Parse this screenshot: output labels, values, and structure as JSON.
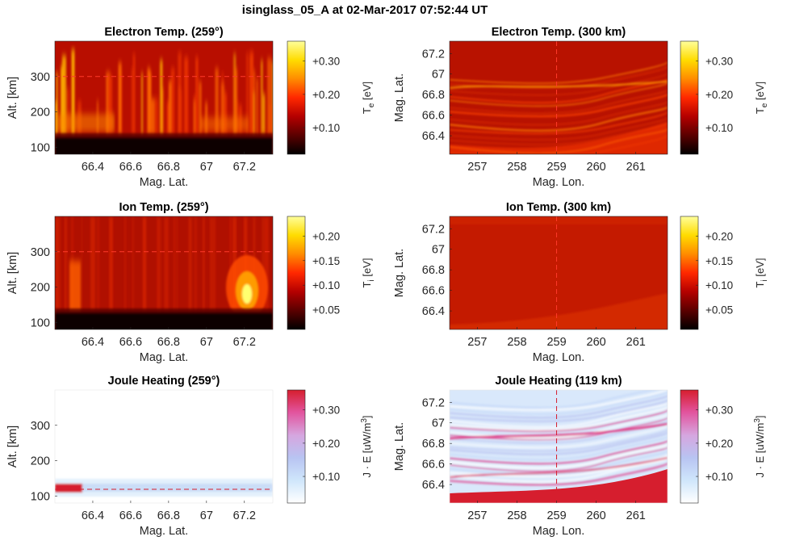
{
  "figure_title": "isinglass_05_A at 02-Mar-2017 07:52:44 UT",
  "colormaps": {
    "hot": [
      "#000000",
      "#5a0000",
      "#b40000",
      "#ff2800",
      "#ff8c00",
      "#ffdc00",
      "#ffff9b"
    ],
    "joule": [
      "#ffffff",
      "#cfe6fb",
      "#b8c4f2",
      "#d6a6df",
      "#e2559f",
      "#d61e2e"
    ]
  },
  "chart_data": [
    {
      "id": "e-alt",
      "type": "heatmap",
      "cmap": "hot",
      "title": "Electron Temp. (259°)",
      "xlabel": "Mag. Lat.",
      "ylabel": "Alt. [km]",
      "xlim": [
        66.2,
        67.35
      ],
      "ylim": [
        80,
        400
      ],
      "xticks": [
        66.4,
        66.6,
        66.8,
        67,
        67.2
      ],
      "xticklabels": [
        "66.4",
        "66.6",
        "66.8",
        "67",
        "67.2"
      ],
      "yticks": [
        100,
        200,
        300
      ],
      "yticklabels": [
        "100",
        "200",
        "300"
      ],
      "clim": [
        0.02,
        0.36
      ],
      "cbticks": [
        0.1,
        0.2,
        0.3
      ],
      "cbticklabels": [
        "+0.10",
        "+0.20",
        "+0.30"
      ],
      "cblabel_main": "T",
      "cblabel_sub": "e",
      "cblabel_unit": " [eV]",
      "marker_line": {
        "axis": "y",
        "value": 300
      }
    },
    {
      "id": "e-map",
      "type": "heatmap",
      "cmap": "hot",
      "title": "Electron Temp. (300 km)",
      "xlabel": "Mag. Lon.",
      "ylabel": "Mag. Lat.",
      "xlim": [
        256.3,
        261.8
      ],
      "ylim": [
        66.22,
        67.32
      ],
      "xticks": [
        257,
        258,
        259,
        260,
        261
      ],
      "xticklabels": [
        "257",
        "258",
        "259",
        "260",
        "261"
      ],
      "yticks": [
        66.4,
        66.6,
        66.8,
        67,
        67.2
      ],
      "yticklabels": [
        "66.4",
        "66.6",
        "66.8",
        "67",
        "67.2"
      ],
      "clim": [
        0.02,
        0.36
      ],
      "cbticks": [
        0.1,
        0.2,
        0.3
      ],
      "cbticklabels": [
        "+0.10",
        "+0.20",
        "+0.30"
      ],
      "cblabel_main": "T",
      "cblabel_sub": "e",
      "cblabel_unit": " [eV]",
      "marker_line": {
        "axis": "x",
        "value": 259
      }
    },
    {
      "id": "i-alt",
      "type": "heatmap",
      "cmap": "hot",
      "title": "Ion Temp. (259°)",
      "xlabel": "Mag. Lat.",
      "ylabel": "Alt. [km]",
      "xlim": [
        66.2,
        67.35
      ],
      "ylim": [
        80,
        400
      ],
      "xticks": [
        66.4,
        66.6,
        66.8,
        67,
        67.2
      ],
      "xticklabels": [
        "66.4",
        "66.6",
        "66.8",
        "67",
        "67.2"
      ],
      "yticks": [
        100,
        200,
        300
      ],
      "yticklabels": [
        "100",
        "200",
        "300"
      ],
      "clim": [
        0.01,
        0.24
      ],
      "cbticks": [
        0.05,
        0.1,
        0.15,
        0.2
      ],
      "cbticklabels": [
        "+0.05",
        "+0.10",
        "+0.15",
        "+0.20"
      ],
      "cblabel_main": "T",
      "cblabel_sub": "i",
      "cblabel_unit": " [eV]",
      "marker_line": {
        "axis": "y",
        "value": 300
      }
    },
    {
      "id": "i-map",
      "type": "heatmap",
      "cmap": "hot",
      "title": "Ion Temp. (300 km)",
      "xlabel": "Mag. Lon.",
      "ylabel": "Mag. Lat.",
      "xlim": [
        256.3,
        261.8
      ],
      "ylim": [
        66.22,
        67.32
      ],
      "xticks": [
        257,
        258,
        259,
        260,
        261
      ],
      "xticklabels": [
        "257",
        "258",
        "259",
        "260",
        "261"
      ],
      "yticks": [
        66.4,
        66.6,
        66.8,
        67,
        67.2
      ],
      "yticklabels": [
        "66.4",
        "66.6",
        "66.8",
        "67",
        "67.2"
      ],
      "clim": [
        0.01,
        0.24
      ],
      "cbticks": [
        0.05,
        0.1,
        0.15,
        0.2
      ],
      "cbticklabels": [
        "+0.05",
        "+0.10",
        "+0.15",
        "+0.20"
      ],
      "cblabel_main": "T",
      "cblabel_sub": "i",
      "cblabel_unit": " [eV]",
      "marker_line": {
        "axis": "x",
        "value": 259
      }
    },
    {
      "id": "j-alt",
      "type": "heatmap",
      "cmap": "joule",
      "title": "Joule Heating (259°)",
      "xlabel": "Mag. Lat.",
      "ylabel": "Alt. [km]",
      "xlim": [
        66.2,
        67.35
      ],
      "ylim": [
        80,
        400
      ],
      "xticks": [
        66.4,
        66.6,
        66.8,
        67,
        67.2
      ],
      "xticklabels": [
        "66.4",
        "66.6",
        "66.8",
        "67",
        "67.2"
      ],
      "yticks": [
        100,
        200,
        300
      ],
      "yticklabels": [
        "100",
        "200",
        "300"
      ],
      "clim": [
        0.02,
        0.36
      ],
      "cbticks": [
        0.1,
        0.2,
        0.3
      ],
      "cbticklabels": [
        "+0.10",
        "+0.20",
        "+0.30"
      ],
      "cblabel_main": "J · E [uW/m",
      "cblabel_sup": "3",
      "cblabel_unit": "]",
      "marker_line": {
        "axis": "y",
        "value": 119
      }
    },
    {
      "id": "j-map",
      "type": "heatmap",
      "cmap": "joule",
      "title": "Joule Heating (119 km)",
      "xlabel": "Mag. Lon.",
      "ylabel": "Mag. Lat.",
      "xlim": [
        256.3,
        261.8
      ],
      "ylim": [
        66.22,
        67.32
      ],
      "xticks": [
        257,
        258,
        259,
        260,
        261
      ],
      "xticklabels": [
        "257",
        "258",
        "259",
        "260",
        "261"
      ],
      "yticks": [
        66.4,
        66.6,
        66.8,
        67,
        67.2
      ],
      "yticklabels": [
        "66.4",
        "66.6",
        "66.8",
        "67",
        "67.2"
      ],
      "clim": [
        0.02,
        0.36
      ],
      "cbticks": [
        0.1,
        0.2,
        0.3
      ],
      "cbticklabels": [
        "+0.10",
        "+0.20",
        "+0.30"
      ],
      "cblabel_main": "J · E [uW/m",
      "cblabel_sup": "3",
      "cblabel_unit": "]",
      "marker_line": {
        "axis": "x",
        "value": 259
      }
    }
  ]
}
